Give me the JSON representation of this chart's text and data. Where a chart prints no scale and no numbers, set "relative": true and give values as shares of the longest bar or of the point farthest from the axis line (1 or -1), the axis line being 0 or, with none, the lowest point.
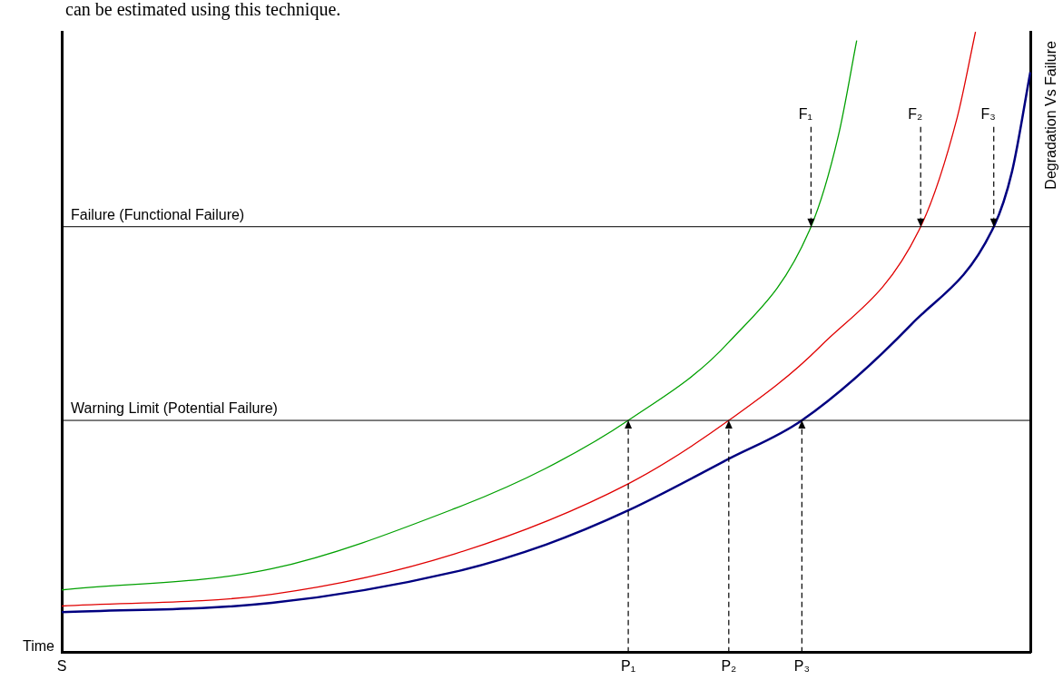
{
  "chart_data": {
    "type": "line",
    "relative": true,
    "marker": "none",
    "xlabel": "Time",
    "ylabel": "Degradation Vs Failure",
    "categories": [
      "S",
      null,
      null,
      null,
      null,
      null,
      null,
      null,
      null,
      null,
      null,
      null,
      null,
      null,
      null,
      null,
      null,
      null,
      null,
      null,
      null,
      null,
      null,
      null,
      null,
      null,
      null,
      null,
      null,
      null,
      null,
      null,
      null,
      null,
      null,
      null,
      null,
      null,
      null,
      null,
      null,
      null,
      null,
      null,
      null,
      null,
      null,
      null,
      null,
      null,
      null,
      null,
      null,
      null,
      null,
      null,
      null,
      null,
      null,
      null,
      null,
      null,
      "P₁",
      null,
      null,
      null,
      null,
      null,
      null,
      null,
      null,
      null,
      null,
      "P₂",
      null,
      null,
      null,
      null,
      null,
      null,
      null,
      "P₃",
      null,
      null,
      null,
      null,
      null,
      null,
      null,
      null,
      null,
      null,
      null,
      null,
      null,
      null,
      null,
      null,
      null,
      null,
      null,
      null,
      null,
      null,
      null,
      null,
      null
    ],
    "series": [
      {
        "color": "#00a000",
        "values": [
          0.101,
          null,
          null,
          null,
          null,
          null,
          null,
          null,
          null,
          null,
          null,
          null,
          null,
          null,
          null,
          null,
          null,
          null,
          null,
          null,
          null,
          null,
          null,
          0.135,
          null,
          null,
          null,
          null,
          null,
          null,
          null,
          null,
          null,
          null,
          null,
          null,
          null,
          null,
          null,
          null,
          null,
          null,
          null,
          0.232,
          null,
          null,
          null,
          null,
          null,
          null,
          null,
          null,
          null,
          0.297,
          null,
          null,
          null,
          null,
          null,
          null,
          null,
          null,
          0.374,
          null,
          null,
          null,
          null,
          null,
          null,
          null,
          null,
          null,
          null,
          0.5,
          null,
          null,
          null,
          null,
          null,
          null,
          null,
          null,
          0.686,
          null,
          null,
          0.833,
          null,
          0.986,
          null,
          null,
          null,
          null,
          null,
          null,
          null,
          null,
          null,
          null,
          null,
          null,
          null,
          null,
          null,
          null,
          null,
          null,
          null
        ]
      },
      {
        "color": "#e00000",
        "values": [
          0.075,
          null,
          null,
          null,
          null,
          null,
          null,
          null,
          null,
          null,
          null,
          null,
          null,
          null,
          null,
          null,
          null,
          null,
          null,
          null,
          null,
          null,
          null,
          0.094,
          null,
          null,
          null,
          null,
          null,
          null,
          null,
          null,
          null,
          null,
          null,
          null,
          null,
          null,
          null,
          null,
          null,
          null,
          null,
          0.159,
          null,
          null,
          null,
          null,
          null,
          null,
          null,
          null,
          null,
          null,
          null,
          null,
          null,
          null,
          null,
          null,
          null,
          null,
          0.272,
          null,
          null,
          null,
          null,
          null,
          null,
          null,
          null,
          null,
          null,
          0.374,
          null,
          null,
          null,
          null,
          null,
          null,
          null,
          null,
          null,
          0.493,
          null,
          null,
          null,
          null,
          null,
          null,
          null,
          null,
          null,
          null,
          0.686,
          null,
          null,
          null,
          0.862,
          null,
          1.0,
          null,
          null,
          null,
          null,
          null,
          null
        ]
      },
      {
        "color": "#000080",
        "values": [
          0.065,
          null,
          null,
          null,
          null,
          null,
          null,
          null,
          null,
          null,
          null,
          null,
          null,
          null,
          null,
          null,
          null,
          null,
          null,
          null,
          null,
          null,
          null,
          0.08,
          null,
          null,
          null,
          null,
          null,
          null,
          null,
          null,
          null,
          null,
          null,
          null,
          null,
          null,
          null,
          null,
          null,
          null,
          null,
          0.13,
          null,
          null,
          null,
          null,
          null,
          null,
          null,
          null,
          null,
          0.174,
          null,
          null,
          null,
          null,
          null,
          null,
          null,
          null,
          0.229,
          null,
          null,
          null,
          null,
          null,
          null,
          null,
          null,
          null,
          null,
          0.312,
          null,
          null,
          null,
          null,
          null,
          null,
          null,
          0.374,
          null,
          null,
          null,
          null,
          null,
          null,
          null,
          null,
          null,
          null,
          null,
          0.529,
          null,
          null,
          null,
          null,
          null,
          null,
          null,
          null,
          0.686,
          null,
          0.775,
          null,
          0.935
        ]
      }
    ],
    "ref_lines": [
      {
        "axis": "y",
        "value": 0.374,
        "label": "Warning Limit (Potential Failure)",
        "color": "#000000"
      },
      {
        "axis": "y",
        "value": 0.686,
        "label": "Failure (Functional Failure)",
        "color": "#000000"
      }
    ],
    "annotations": [
      "can be estimated using this technique.",
      "F₁",
      "F₂",
      "F₃"
    ]
  }
}
